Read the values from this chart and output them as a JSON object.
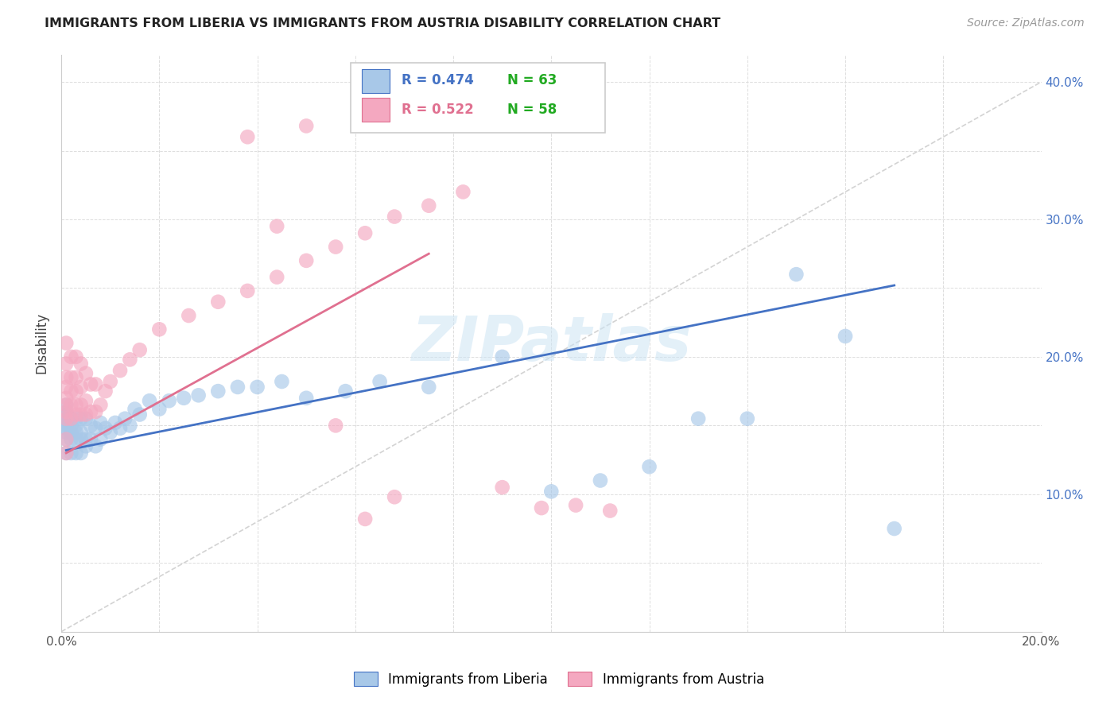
{
  "title": "IMMIGRANTS FROM LIBERIA VS IMMIGRANTS FROM AUSTRIA DISABILITY CORRELATION CHART",
  "source": "Source: ZipAtlas.com",
  "ylabel": "Disability",
  "xlim": [
    0.0,
    0.2
  ],
  "ylim": [
    0.0,
    0.42
  ],
  "x_ticks": [
    0.0,
    0.02,
    0.04,
    0.06,
    0.08,
    0.1,
    0.12,
    0.14,
    0.16,
    0.18,
    0.2
  ],
  "y_ticks": [
    0.0,
    0.05,
    0.1,
    0.15,
    0.2,
    0.25,
    0.3,
    0.35,
    0.4
  ],
  "x_tick_labels": [
    "0.0%",
    "",
    "",
    "",
    "",
    "",
    "",
    "",
    "",
    "",
    "20.0%"
  ],
  "y_tick_labels_right": [
    "",
    "",
    "10.0%",
    "",
    "20.0%",
    "",
    "30.0%",
    "",
    "40.0%"
  ],
  "liberia_color": "#a8c8e8",
  "austria_color": "#f4a8c0",
  "liberia_R": "0.474",
  "liberia_N": "63",
  "austria_R": "0.522",
  "austria_N": "58",
  "liberia_line_color": "#4472c4",
  "austria_line_color": "#e07090",
  "diagonal_color": "#c8c8c8",
  "watermark": "ZIPatlas",
  "legend_R_color_liberia": "#4472c4",
  "legend_R_color_austria": "#e07090",
  "legend_N_color": "#22aa22",
  "liberia_x": [
    0.001,
    0.001,
    0.001,
    0.001,
    0.001,
    0.001,
    0.001,
    0.001,
    0.001,
    0.001,
    0.002,
    0.002,
    0.002,
    0.002,
    0.002,
    0.003,
    0.003,
    0.003,
    0.003,
    0.003,
    0.004,
    0.004,
    0.004,
    0.004,
    0.005,
    0.005,
    0.005,
    0.006,
    0.006,
    0.007,
    0.007,
    0.008,
    0.008,
    0.009,
    0.01,
    0.011,
    0.012,
    0.013,
    0.014,
    0.015,
    0.016,
    0.018,
    0.02,
    0.022,
    0.025,
    0.028,
    0.032,
    0.036,
    0.04,
    0.045,
    0.05,
    0.058,
    0.065,
    0.075,
    0.09,
    0.1,
    0.11,
    0.12,
    0.13,
    0.14,
    0.15,
    0.16,
    0.17
  ],
  "liberia_y": [
    0.13,
    0.14,
    0.145,
    0.148,
    0.15,
    0.152,
    0.155,
    0.158,
    0.16,
    0.165,
    0.13,
    0.14,
    0.145,
    0.15,
    0.155,
    0.13,
    0.14,
    0.145,
    0.15,
    0.155,
    0.13,
    0.14,
    0.145,
    0.155,
    0.135,
    0.14,
    0.155,
    0.14,
    0.15,
    0.135,
    0.148,
    0.14,
    0.152,
    0.148,
    0.145,
    0.152,
    0.148,
    0.155,
    0.15,
    0.162,
    0.158,
    0.168,
    0.162,
    0.168,
    0.17,
    0.172,
    0.175,
    0.178,
    0.178,
    0.182,
    0.17,
    0.175,
    0.182,
    0.178,
    0.2,
    0.102,
    0.11,
    0.12,
    0.155,
    0.155,
    0.26,
    0.215,
    0.075
  ],
  "austria_x": [
    0.001,
    0.001,
    0.001,
    0.001,
    0.001,
    0.001,
    0.001,
    0.001,
    0.001,
    0.001,
    0.002,
    0.002,
    0.002,
    0.002,
    0.002,
    0.003,
    0.003,
    0.003,
    0.003,
    0.003,
    0.004,
    0.004,
    0.004,
    0.004,
    0.005,
    0.005,
    0.005,
    0.006,
    0.006,
    0.007,
    0.007,
    0.008,
    0.009,
    0.01,
    0.012,
    0.014,
    0.016,
    0.02,
    0.026,
    0.032,
    0.038,
    0.044,
    0.05,
    0.056,
    0.062,
    0.068,
    0.075,
    0.082,
    0.09,
    0.098,
    0.105,
    0.112,
    0.038,
    0.044,
    0.05,
    0.056,
    0.062,
    0.068
  ],
  "austria_y": [
    0.13,
    0.14,
    0.155,
    0.16,
    0.165,
    0.17,
    0.178,
    0.185,
    0.195,
    0.21,
    0.155,
    0.165,
    0.175,
    0.185,
    0.2,
    0.158,
    0.165,
    0.175,
    0.185,
    0.2,
    0.158,
    0.165,
    0.178,
    0.195,
    0.158,
    0.168,
    0.188,
    0.16,
    0.18,
    0.16,
    0.18,
    0.165,
    0.175,
    0.182,
    0.19,
    0.198,
    0.205,
    0.22,
    0.23,
    0.24,
    0.248,
    0.258,
    0.27,
    0.28,
    0.29,
    0.302,
    0.31,
    0.32,
    0.105,
    0.09,
    0.092,
    0.088,
    0.36,
    0.295,
    0.368,
    0.15,
    0.082,
    0.098
  ]
}
